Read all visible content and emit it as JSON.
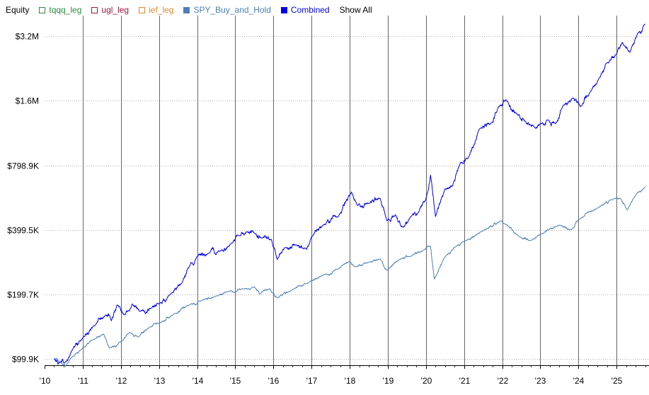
{
  "legend": {
    "title": "Equity",
    "items": [
      {
        "key": "tqqq",
        "label": "tqqq_leg",
        "color": "#2e8b3e",
        "filled": false
      },
      {
        "key": "ugl",
        "label": "ugl_leg",
        "color": "#a0143c",
        "filled": false
      },
      {
        "key": "ief",
        "label": "ief_leg",
        "color": "#e08a2c",
        "filled": false
      },
      {
        "key": "spy",
        "label": "SPY_Buy_and_Hold",
        "color": "#4a7fb8",
        "filled": true
      },
      {
        "key": "combined",
        "label": "Combined",
        "color": "#0000ee",
        "filled": true
      }
    ],
    "show_all": "Show All"
  },
  "chart_data": {
    "type": "line",
    "y_scale": "log",
    "ylim": [
      93000,
      4000000
    ],
    "xlim": [
      2010.0,
      2025.85
    ],
    "y_ticks": [
      {
        "value": 99900,
        "label": "$99.9K"
      },
      {
        "value": 199700,
        "label": "$199.7K"
      },
      {
        "value": 399500,
        "label": "$399.5K"
      },
      {
        "value": 798900,
        "label": "$798.9K"
      },
      {
        "value": 1600000,
        "label": "$1.6M"
      },
      {
        "value": 3200000,
        "label": "$3.2M"
      }
    ],
    "x_ticks": [
      {
        "value": 2010,
        "label": "'10"
      },
      {
        "value": 2011,
        "label": "'11"
      },
      {
        "value": 2012,
        "label": "'12"
      },
      {
        "value": 2013,
        "label": "'13"
      },
      {
        "value": 2014,
        "label": "'14"
      },
      {
        "value": 2015,
        "label": "'15"
      },
      {
        "value": 2016,
        "label": "'16"
      },
      {
        "value": 2017,
        "label": "'17"
      },
      {
        "value": 2018,
        "label": "'18"
      },
      {
        "value": 2019,
        "label": "'19"
      },
      {
        "value": 2020,
        "label": "'20"
      },
      {
        "value": 2021,
        "label": "'21"
      },
      {
        "value": 2022,
        "label": "'22"
      },
      {
        "value": 2023,
        "label": "'23"
      },
      {
        "value": 2024,
        "label": "'24"
      },
      {
        "value": 2025,
        "label": "'25"
      }
    ],
    "series": [
      {
        "name": "SPY_Buy_and_Hold",
        "color": "#4a7fb8",
        "points": [
          [
            2010.25,
            100000
          ],
          [
            2010.42,
            96000
          ],
          [
            2010.55,
            92000
          ],
          [
            2010.7,
            101000
          ],
          [
            2011.0,
            112000
          ],
          [
            2011.3,
            123000
          ],
          [
            2011.55,
            130000
          ],
          [
            2011.7,
            112000
          ],
          [
            2012.0,
            120000
          ],
          [
            2012.25,
            132000
          ],
          [
            2012.45,
            126000
          ],
          [
            2012.75,
            140000
          ],
          [
            2013.0,
            146000
          ],
          [
            2013.4,
            162000
          ],
          [
            2013.8,
            178000
          ],
          [
            2014.1,
            186000
          ],
          [
            2014.5,
            196000
          ],
          [
            2014.8,
            205000
          ],
          [
            2015.2,
            212000
          ],
          [
            2015.5,
            216000
          ],
          [
            2015.65,
            200000
          ],
          [
            2015.9,
            212000
          ],
          [
            2016.1,
            192000
          ],
          [
            2016.5,
            210000
          ],
          [
            2016.9,
            225000
          ],
          [
            2017.3,
            245000
          ],
          [
            2017.7,
            262000
          ],
          [
            2018.0,
            285000
          ],
          [
            2018.15,
            268000
          ],
          [
            2018.5,
            282000
          ],
          [
            2018.8,
            292000
          ],
          [
            2018.98,
            258000
          ],
          [
            2019.3,
            290000
          ],
          [
            2019.6,
            300000
          ],
          [
            2019.95,
            322000
          ],
          [
            2020.12,
            335000
          ],
          [
            2020.22,
            235000
          ],
          [
            2020.5,
            298000
          ],
          [
            2020.8,
            335000
          ],
          [
            2021.0,
            352000
          ],
          [
            2021.5,
            395000
          ],
          [
            2021.98,
            440000
          ],
          [
            2022.45,
            370000
          ],
          [
            2022.78,
            358000
          ],
          [
            2023.0,
            380000
          ],
          [
            2023.5,
            420000
          ],
          [
            2023.82,
            400000
          ],
          [
            2024.0,
            445000
          ],
          [
            2024.5,
            505000
          ],
          [
            2024.95,
            560000
          ],
          [
            2025.1,
            560000
          ],
          [
            2025.28,
            495000
          ],
          [
            2025.5,
            580000
          ],
          [
            2025.75,
            635000
          ]
        ]
      },
      {
        "name": "Combined",
        "color": "#0000ee",
        "points": [
          [
            2010.25,
            100000
          ],
          [
            2010.4,
            96000
          ],
          [
            2010.52,
            95000
          ],
          [
            2010.7,
            108000
          ],
          [
            2011.0,
            125000
          ],
          [
            2011.3,
            142000
          ],
          [
            2011.6,
            160000
          ],
          [
            2011.75,
            150000
          ],
          [
            2011.9,
            178000
          ],
          [
            2012.1,
            160000
          ],
          [
            2012.3,
            180000
          ],
          [
            2012.5,
            166000
          ],
          [
            2012.8,
            172000
          ],
          [
            2013.0,
            180000
          ],
          [
            2013.3,
            200000
          ],
          [
            2013.6,
            225000
          ],
          [
            2013.8,
            270000
          ],
          [
            2014.0,
            300000
          ],
          [
            2014.3,
            310000
          ],
          [
            2014.6,
            318000
          ],
          [
            2014.9,
            345000
          ],
          [
            2015.1,
            375000
          ],
          [
            2015.3,
            390000
          ],
          [
            2015.5,
            385000
          ],
          [
            2015.7,
            365000
          ],
          [
            2015.95,
            360000
          ],
          [
            2016.1,
            290000
          ],
          [
            2016.3,
            330000
          ],
          [
            2016.6,
            340000
          ],
          [
            2016.8,
            325000
          ],
          [
            2017.0,
            370000
          ],
          [
            2017.3,
            420000
          ],
          [
            2017.7,
            460000
          ],
          [
            2018.05,
            600000
          ],
          [
            2018.2,
            520000
          ],
          [
            2018.5,
            530000
          ],
          [
            2018.8,
            560000
          ],
          [
            2018.98,
            440000
          ],
          [
            2019.2,
            470000
          ],
          [
            2019.4,
            410000
          ],
          [
            2019.6,
            460000
          ],
          [
            2019.8,
            480000
          ],
          [
            2020.05,
            600000
          ],
          [
            2020.12,
            720000
          ],
          [
            2020.25,
            460000
          ],
          [
            2020.5,
            620000
          ],
          [
            2020.7,
            640000
          ],
          [
            2020.9,
            820000
          ],
          [
            2021.1,
            860000
          ],
          [
            2021.4,
            1180000
          ],
          [
            2021.7,
            1250000
          ],
          [
            2021.9,
            1500000
          ],
          [
            2022.1,
            1620000
          ],
          [
            2022.4,
            1380000
          ],
          [
            2022.6,
            1280000
          ],
          [
            2022.85,
            1200000
          ],
          [
            2023.0,
            1250000
          ],
          [
            2023.2,
            1300000
          ],
          [
            2023.4,
            1250000
          ],
          [
            2023.6,
            1520000
          ],
          [
            2023.85,
            1650000
          ],
          [
            2024.05,
            1500000
          ],
          [
            2024.3,
            1750000
          ],
          [
            2024.55,
            2050000
          ],
          [
            2024.75,
            2400000
          ],
          [
            2025.0,
            2650000
          ],
          [
            2025.15,
            3000000
          ],
          [
            2025.35,
            2700000
          ],
          [
            2025.55,
            3300000
          ],
          [
            2025.75,
            3650000
          ]
        ]
      }
    ]
  }
}
